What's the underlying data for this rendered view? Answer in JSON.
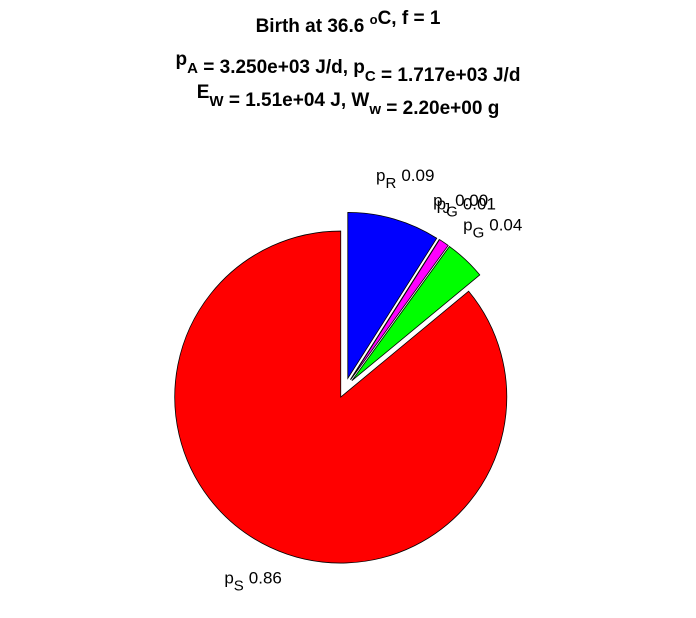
{
  "chart_data": {
    "type": "pie",
    "title_lines": [
      [
        {
          "text": "Birth at 36.6 "
        },
        {
          "text": "o",
          "sup": true
        },
        {
          "text": "C, f = 1"
        }
      ],
      [
        {
          "text": "p"
        },
        {
          "text": "A",
          "sub": true
        },
        {
          "text": " = 3.250e+03 J/d, p"
        },
        {
          "text": "C",
          "sub": true
        },
        {
          "text": " = 1.717e+03 J/d"
        }
      ],
      [
        {
          "text": "E"
        },
        {
          "text": "W",
          "sub": true
        },
        {
          "text": " = 1.51e+04 J, W"
        },
        {
          "text": "w",
          "sub": true
        },
        {
          "text": " = 2.20e+00 g"
        }
      ]
    ],
    "slices": [
      {
        "symbol": "p",
        "subscript": "R",
        "value": 0.09,
        "value_label": "0.09",
        "color": "#0000ff"
      },
      {
        "symbol": "p",
        "subscript": "J",
        "value": 0.0,
        "value_label": "0.00",
        "color": "#ffff00"
      },
      {
        "symbol": "p",
        "subscript": "G",
        "value": 0.01,
        "value_label": "0.01",
        "color": "#ff00ff"
      },
      {
        "symbol": "p",
        "subscript": "G",
        "value": 0.04,
        "value_label": "0.04",
        "color": "#00ff00"
      },
      {
        "symbol": "p",
        "subscript": "S",
        "value": 0.86,
        "value_label": "0.86",
        "color": "#ff0000"
      }
    ]
  }
}
